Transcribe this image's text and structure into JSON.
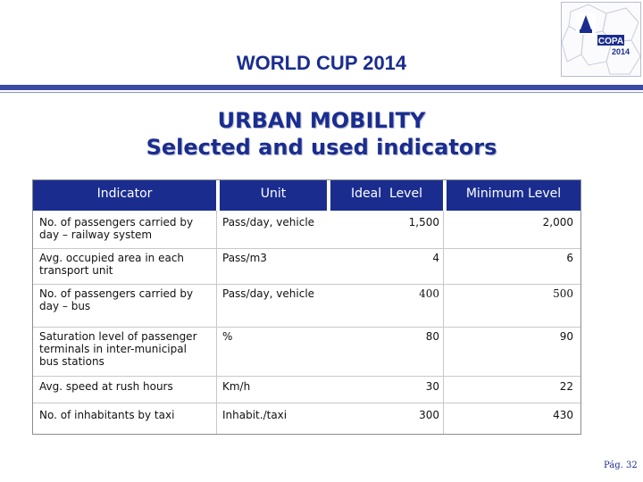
{
  "header": {
    "title": "WORLD CUP 2014"
  },
  "logo": {
    "lettering": "COPA 2014",
    "icon": "world-cup-logo-icon"
  },
  "slide": {
    "title_line1": "URBAN MOBILITY",
    "title_line2": "Selected and used indicators"
  },
  "table": {
    "columns": [
      "Indicator",
      "Unit",
      "Ideal  Level",
      "Minimum Level"
    ],
    "rows": [
      {
        "indicator_line1": "No. of passengers carried by",
        "indicator_line2": "day – railway system",
        "indicator_line3": "",
        "unit": "Pass/day, vehicle",
        "ideal": "1,500",
        "minimum": "2,000"
      },
      {
        "indicator_line1": "Avg. occupied area in each",
        "indicator_line2": "transport unit",
        "indicator_line3": "",
        "unit": "Pass/m3",
        "ideal": "4",
        "minimum": "6"
      },
      {
        "indicator_line1": "No. of passengers carried by",
        "indicator_line2": "day – bus",
        "indicator_line3": "",
        "unit": "Pass/day, vehicle",
        "ideal": "400",
        "minimum": "500"
      },
      {
        "indicator_line1": "Saturation level of passenger",
        "indicator_line2": "terminals in inter-municipal",
        "indicator_line3": "bus stations",
        "unit": "%",
        "ideal": "80",
        "minimum": "90"
      },
      {
        "indicator_line1": "Avg. speed at rush hours",
        "indicator_line2": "",
        "indicator_line3": "",
        "unit": "Km/h",
        "ideal": "30",
        "minimum": "22"
      },
      {
        "indicator_line1": "No. of inhabitants by taxi",
        "indicator_line2": "",
        "indicator_line3": "",
        "unit": "Inhabit./taxi",
        "ideal": "300",
        "minimum": "430"
      }
    ]
  },
  "footer": {
    "page": "Pág. 32"
  },
  "colors": {
    "brand": "#1a2d8f",
    "rule": "#3b4ba3"
  }
}
